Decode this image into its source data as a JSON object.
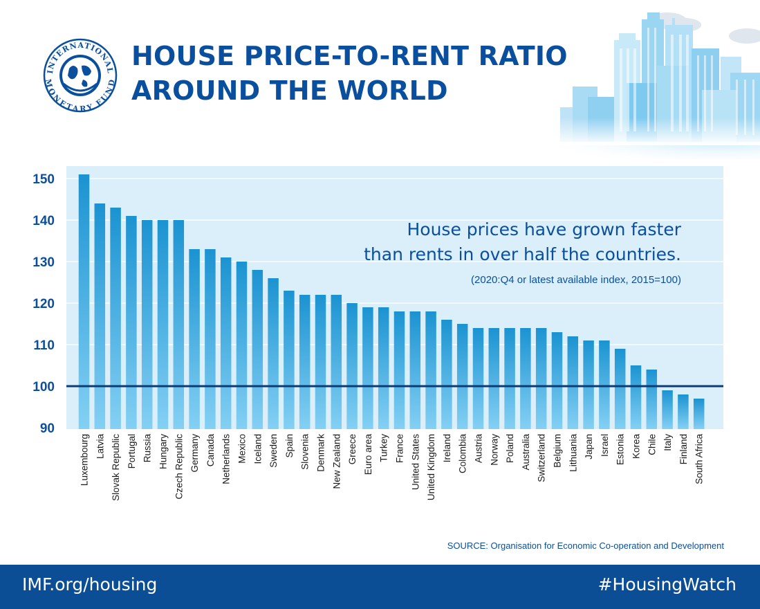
{
  "header": {
    "title_line1": "HOUSE PRICE-TO-RENT RATIO",
    "title_line2": "AROUND THE WORLD",
    "logo_top_text": "INTERNATIONAL",
    "logo_bottom_text": "MONETARY FUND"
  },
  "chart_data": {
    "type": "bar",
    "categories": [
      "Luxembourg",
      "Latvia",
      "Slovak Republic",
      "Portugal",
      "Russia",
      "Hungary",
      "Czech Republic",
      "Germany",
      "Canada",
      "Netherlands",
      "Mexico",
      "Iceland",
      "Sweden",
      "Spain",
      "Slovenia",
      "Denmark",
      "New Zealand",
      "Greece",
      "Euro area",
      "Turkey",
      "France",
      "United States",
      "United Kingdom",
      "Ireland",
      "Colombia",
      "Austria",
      "Norway",
      "Poland",
      "Australia",
      "Switzerland",
      "Belgium",
      "Lithuania",
      "Japan",
      "Israel",
      "Estonia",
      "Korea",
      "Chile",
      "Italy",
      "Finland",
      "South Africa"
    ],
    "values": [
      151,
      144,
      143,
      141,
      140,
      140,
      140,
      133,
      133,
      131,
      130,
      128,
      126,
      123,
      122,
      122,
      122,
      120,
      119,
      119,
      118,
      118,
      118,
      116,
      115,
      114,
      114,
      114,
      114,
      114,
      113,
      112,
      111,
      111,
      109,
      105,
      104,
      99,
      98,
      97
    ],
    "ylim": [
      90,
      152
    ],
    "yticks": [
      90,
      100,
      110,
      120,
      130,
      140,
      150
    ],
    "reference_line": 100,
    "annotation": {
      "line1": "House prices have grown faster",
      "line2": "than rents in over half the countries.",
      "line3": "(2020:Q4 or latest available index, 2015=100)"
    },
    "grid": true,
    "colors": {
      "bar_top": "#1b93d1",
      "bar_bottom": "#84d0f4",
      "plot_bg": "#daeffa",
      "reference": "#0d3b73",
      "axis_text": "#0a4f9e"
    }
  },
  "source": "SOURCE: Organisation for Economic Co-operation and Development",
  "footer": {
    "left": "IMF.org/housing",
    "right": "#HousingWatch"
  }
}
